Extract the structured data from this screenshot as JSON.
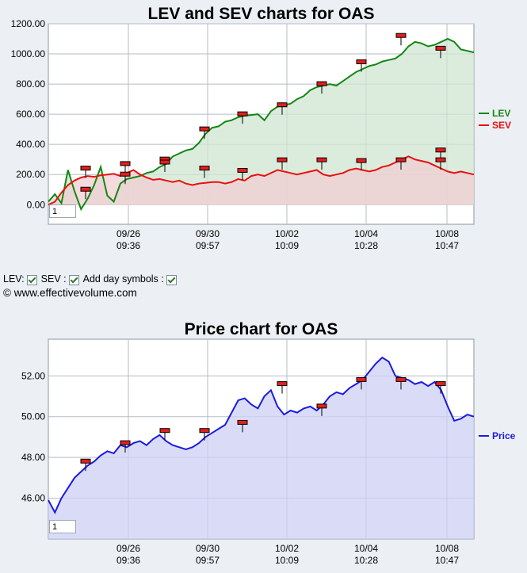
{
  "chart_data": [
    {
      "type": "line",
      "title": "LEV and SEV charts for OAS",
      "ylim": [
        -130,
        1200
      ],
      "yticks": [
        "1200.00",
        "1000.00",
        "800.00",
        "600.00",
        "400.00",
        "200.00",
        "0.00"
      ],
      "ytick_values": [
        1200,
        1000,
        800,
        600,
        400,
        200,
        0
      ],
      "xticks": [
        {
          "date": "09/26",
          "time": "09:36"
        },
        {
          "date": "09/30",
          "time": "09:57"
        },
        {
          "date": "10/02",
          "time": "10:09"
        },
        {
          "date": "10/04",
          "time": "10:28"
        },
        {
          "date": "10/08",
          "time": "10:47"
        }
      ],
      "grid": true,
      "legend_position": "right",
      "series": [
        {
          "name": "LEV",
          "color": "#138713",
          "fill": "#cfe6d2",
          "values": [
            20,
            70,
            10,
            230,
            90,
            -30,
            40,
            130,
            250,
            60,
            20,
            140,
            170,
            180,
            190,
            210,
            220,
            250,
            270,
            320,
            340,
            360,
            370,
            410,
            470,
            510,
            520,
            550,
            560,
            580,
            590,
            595,
            600,
            560,
            620,
            650,
            660,
            670,
            700,
            720,
            760,
            780,
            790,
            800,
            790,
            820,
            850,
            880,
            900,
            920,
            930,
            950,
            960,
            970,
            1000,
            1050,
            1080,
            1070,
            1050,
            1060,
            1080,
            1100,
            1080,
            1030,
            1020,
            1010
          ]
        },
        {
          "name": "SEV",
          "color": "#e81010",
          "fill": "#f1cfd2",
          "values": [
            0,
            20,
            80,
            130,
            160,
            180,
            190,
            185,
            195,
            200,
            205,
            190,
            210,
            230,
            200,
            180,
            165,
            170,
            160,
            150,
            160,
            140,
            130,
            140,
            145,
            150,
            150,
            140,
            150,
            170,
            160,
            190,
            200,
            190,
            210,
            230,
            220,
            210,
            200,
            210,
            220,
            230,
            200,
            190,
            200,
            210,
            230,
            240,
            230,
            220,
            230,
            250,
            260,
            280,
            300,
            320,
            300,
            290,
            280,
            260,
            240,
            220,
            210,
            220,
            210,
            200
          ]
        }
      ],
      "day_markers": [
        {
          "series": "LEV",
          "day": 0,
          "value": 240
        },
        {
          "series": "LEV",
          "day": 1,
          "value": 270
        },
        {
          "series": "LEV",
          "day": 2,
          "value": 300
        },
        {
          "series": "LEV",
          "day": 3,
          "value": 500
        },
        {
          "series": "LEV",
          "day": 4,
          "value": 600
        },
        {
          "series": "LEV",
          "day": 5,
          "value": 660
        },
        {
          "series": "LEV",
          "day": 6,
          "value": 800
        },
        {
          "series": "LEV",
          "day": 7,
          "value": 945
        },
        {
          "series": "LEV",
          "day": 8,
          "value": 1120
        },
        {
          "series": "LEV",
          "day": 9,
          "value": 1035
        },
        {
          "series": "SEV",
          "day": 0,
          "value": 100
        },
        {
          "series": "SEV",
          "day": 1,
          "value": 200
        },
        {
          "series": "SEV",
          "day": 2,
          "value": 280
        },
        {
          "series": "SEV",
          "day": 3,
          "value": 240
        },
        {
          "series": "SEV",
          "day": 4,
          "value": 225
        },
        {
          "series": "SEV",
          "day": 5,
          "value": 295
        },
        {
          "series": "SEV",
          "day": 6,
          "value": 295
        },
        {
          "series": "SEV",
          "day": 7,
          "value": 290
        },
        {
          "series": "SEV",
          "day": 8,
          "value": 295
        },
        {
          "series": "SEV",
          "day": 9,
          "value": 360
        },
        {
          "series": "SEV",
          "day": 10,
          "value": 295
        }
      ]
    },
    {
      "type": "area",
      "title": "Price chart for OAS",
      "ylim": [
        44,
        53.8
      ],
      "yticks": [
        "52.00",
        "50.00",
        "48.00",
        "46.00"
      ],
      "ytick_values": [
        52,
        50,
        48,
        46
      ],
      "xticks": [
        {
          "date": "09/26",
          "time": "09:36"
        },
        {
          "date": "09/30",
          "time": "09:57"
        },
        {
          "date": "10/02",
          "time": "10:09"
        },
        {
          "date": "10/04",
          "time": "10:28"
        },
        {
          "date": "10/08",
          "time": "10:47"
        }
      ],
      "grid": true,
      "legend_position": "right",
      "series": [
        {
          "name": "Price",
          "color": "#1b1bdd",
          "fill": "#cdd0f4",
          "values": [
            45.9,
            45.3,
            46.0,
            46.5,
            47.0,
            47.3,
            47.6,
            47.8,
            48.1,
            48.3,
            48.2,
            48.6,
            48.5,
            48.7,
            48.8,
            48.6,
            48.9,
            49.1,
            48.8,
            48.6,
            48.5,
            48.4,
            48.5,
            48.7,
            49.0,
            49.2,
            49.4,
            49.6,
            50.2,
            50.8,
            50.9,
            50.6,
            50.4,
            51.0,
            51.3,
            50.5,
            50.1,
            50.3,
            50.2,
            50.4,
            50.5,
            50.3,
            50.6,
            51.0,
            51.2,
            51.1,
            51.4,
            51.6,
            51.8,
            52.2,
            52.6,
            52.9,
            52.7,
            52.0,
            51.9,
            51.8,
            51.6,
            51.7,
            51.5,
            51.7,
            51.3,
            50.5,
            49.8,
            49.9,
            50.1,
            50.0
          ]
        }
      ],
      "day_markers": [
        {
          "day": 0,
          "value": 47.8
        },
        {
          "day": 1,
          "value": 48.7
        },
        {
          "day": 2,
          "value": 49.3
        },
        {
          "day": 3,
          "value": 49.3
        },
        {
          "day": 4,
          "value": 49.7
        },
        {
          "day": 5,
          "value": 51.6
        },
        {
          "day": 6,
          "value": 50.5
        },
        {
          "day": 7,
          "value": 51.8
        },
        {
          "day": 8,
          "value": 51.8
        },
        {
          "day": 9,
          "value": 51.6
        }
      ]
    }
  ],
  "controls": {
    "lev_label": "LEV:",
    "sev_label": "SEV :",
    "day_symbols_label": "Add day symbols :"
  },
  "copyright": "© www.effectivevolume.com",
  "zoom_value": "1"
}
